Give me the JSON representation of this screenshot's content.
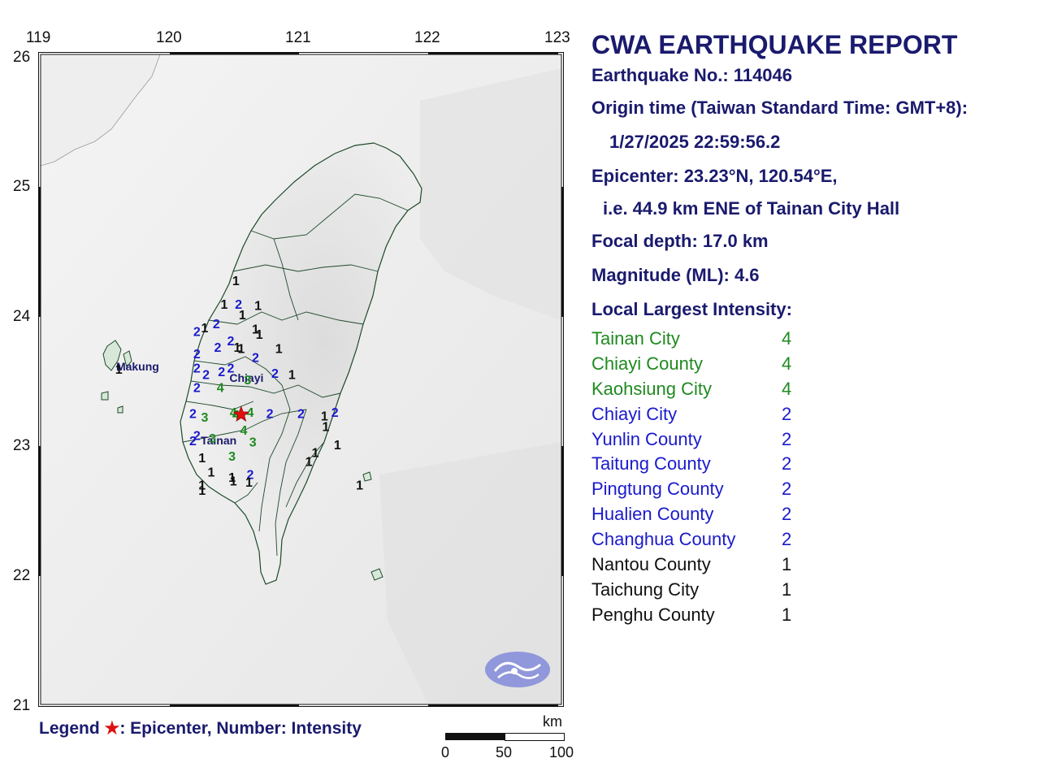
{
  "report": {
    "title": "CWA EARTHQUAKE REPORT",
    "earthquake_no": "Earthquake No.: 114046",
    "origin_time_label": "Origin time (Taiwan Standard Time: GMT+8):",
    "origin_time": "1/27/2025 22:59:56.2",
    "epicenter": "Epicenter: 23.23°N, 120.54°E,",
    "epicenter_desc": "i.e. 44.9 km ENE of Tainan City Hall",
    "focal_depth": "Focal depth: 17.0 km",
    "magnitude": "Magnitude (ML): 4.6",
    "intensity_heading": "Local Largest Intensity:"
  },
  "intensity_list": [
    {
      "county": "Tainan City",
      "intensity": "4"
    },
    {
      "county": "Chiayi County",
      "intensity": "4"
    },
    {
      "county": "Kaohsiung City",
      "intensity": "4"
    },
    {
      "county": "Chiayi City",
      "intensity": "2"
    },
    {
      "county": "Yunlin County",
      "intensity": "2"
    },
    {
      "county": "Taitung County",
      "intensity": "2"
    },
    {
      "county": "Pingtung County",
      "intensity": "2"
    },
    {
      "county": "Hualien County",
      "intensity": "2"
    },
    {
      "county": "Changhua County",
      "intensity": "2"
    },
    {
      "county": "Nantou County",
      "intensity": "1"
    },
    {
      "county": "Taichung City",
      "intensity": "1"
    },
    {
      "county": "Penghu County",
      "intensity": "1"
    }
  ],
  "intensity_colors": {
    "4": "#1f8a1f",
    "3": "#1f8a1f",
    "2": "#1a1acc",
    "1": "#111111"
  },
  "map": {
    "lon_ticks": [
      "119",
      "120",
      "121",
      "122",
      "123"
    ],
    "lat_ticks": [
      "26",
      "25",
      "24",
      "23",
      "22",
      "21"
    ],
    "lon_range": [
      119,
      123
    ],
    "lat_range": [
      21,
      26
    ],
    "epicenter": {
      "lat": 23.23,
      "lon": 120.54
    },
    "place_labels": [
      {
        "name": "Makung",
        "lat": 23.57,
        "lon": 119.58
      },
      {
        "name": "Chiayi",
        "lat": 23.48,
        "lon": 120.45
      },
      {
        "name": "Tainan",
        "lat": 23.0,
        "lon": 120.23
      }
    ],
    "stations": [
      {
        "lat": 24.25,
        "lon": 120.5,
        "i": "1"
      },
      {
        "lat": 24.07,
        "lon": 120.41,
        "i": "1"
      },
      {
        "lat": 24.07,
        "lon": 120.52,
        "i": "2"
      },
      {
        "lat": 24.06,
        "lon": 120.67,
        "i": "1"
      },
      {
        "lat": 23.99,
        "lon": 120.55,
        "i": "1"
      },
      {
        "lat": 23.92,
        "lon": 120.35,
        "i": "2"
      },
      {
        "lat": 23.89,
        "lon": 120.26,
        "i": "1"
      },
      {
        "lat": 23.86,
        "lon": 120.2,
        "i": "2"
      },
      {
        "lat": 23.88,
        "lon": 120.65,
        "i": "1"
      },
      {
        "lat": 23.84,
        "lon": 120.68,
        "i": "1"
      },
      {
        "lat": 23.79,
        "lon": 120.46,
        "i": "2"
      },
      {
        "lat": 23.74,
        "lon": 120.36,
        "i": "2"
      },
      {
        "lat": 23.74,
        "lon": 120.51,
        "i": "1"
      },
      {
        "lat": 23.73,
        "lon": 120.54,
        "i": "1"
      },
      {
        "lat": 23.73,
        "lon": 120.83,
        "i": "1"
      },
      {
        "lat": 23.69,
        "lon": 120.2,
        "i": "2"
      },
      {
        "lat": 23.66,
        "lon": 120.65,
        "i": "2"
      },
      {
        "lat": 23.58,
        "lon": 120.2,
        "i": "2"
      },
      {
        "lat": 23.58,
        "lon": 120.46,
        "i": "2"
      },
      {
        "lat": 23.55,
        "lon": 120.39,
        "i": "2"
      },
      {
        "lat": 23.53,
        "lon": 120.27,
        "i": "2"
      },
      {
        "lat": 23.54,
        "lon": 120.8,
        "i": "2"
      },
      {
        "lat": 23.53,
        "lon": 120.93,
        "i": "1"
      },
      {
        "lat": 23.49,
        "lon": 120.59,
        "i": "3"
      },
      {
        "lat": 23.43,
        "lon": 120.38,
        "i": "4"
      },
      {
        "lat": 23.43,
        "lon": 120.2,
        "i": "2"
      },
      {
        "lat": 23.24,
        "lon": 120.48,
        "i": "4"
      },
      {
        "lat": 23.22,
        "lon": 120.5,
        "i": "4"
      },
      {
        "lat": 23.24,
        "lon": 120.61,
        "i": "4"
      },
      {
        "lat": 23.23,
        "lon": 120.76,
        "i": "2"
      },
      {
        "lat": 23.23,
        "lon": 121.0,
        "i": "2"
      },
      {
        "lat": 23.24,
        "lon": 121.26,
        "i": "2"
      },
      {
        "lat": 23.21,
        "lon": 121.18,
        "i": "1"
      },
      {
        "lat": 23.13,
        "lon": 121.19,
        "i": "1"
      },
      {
        "lat": 23.23,
        "lon": 120.17,
        "i": "2"
      },
      {
        "lat": 23.2,
        "lon": 120.26,
        "i": "3"
      },
      {
        "lat": 23.1,
        "lon": 120.56,
        "i": "4"
      },
      {
        "lat": 23.06,
        "lon": 120.2,
        "i": "2"
      },
      {
        "lat": 23.04,
        "lon": 120.32,
        "i": "3"
      },
      {
        "lat": 23.01,
        "lon": 120.63,
        "i": "3"
      },
      {
        "lat": 23.02,
        "lon": 120.17,
        "i": "2"
      },
      {
        "lat": 22.99,
        "lon": 121.28,
        "i": "1"
      },
      {
        "lat": 22.93,
        "lon": 121.11,
        "i": "1"
      },
      {
        "lat": 22.9,
        "lon": 120.47,
        "i": "3"
      },
      {
        "lat": 22.89,
        "lon": 120.24,
        "i": "1"
      },
      {
        "lat": 22.86,
        "lon": 121.06,
        "i": "1"
      },
      {
        "lat": 22.78,
        "lon": 120.31,
        "i": "1"
      },
      {
        "lat": 22.76,
        "lon": 120.61,
        "i": "2"
      },
      {
        "lat": 22.74,
        "lon": 120.47,
        "i": "1"
      },
      {
        "lat": 22.71,
        "lon": 120.48,
        "i": "1"
      },
      {
        "lat": 22.7,
        "lon": 120.6,
        "i": "1"
      },
      {
        "lat": 22.68,
        "lon": 120.24,
        "i": "1"
      },
      {
        "lat": 22.64,
        "lon": 120.24,
        "i": "1"
      },
      {
        "lat": 22.68,
        "lon": 121.45,
        "i": "1"
      },
      {
        "lat": 23.57,
        "lon": 119.6,
        "i": "1"
      }
    ]
  },
  "legend": {
    "prefix": "Legend",
    "star": "★",
    "text": ": Epicenter, Number: Intensity"
  },
  "scale": {
    "unit": "km",
    "labels": [
      "0",
      "50",
      "100"
    ]
  }
}
